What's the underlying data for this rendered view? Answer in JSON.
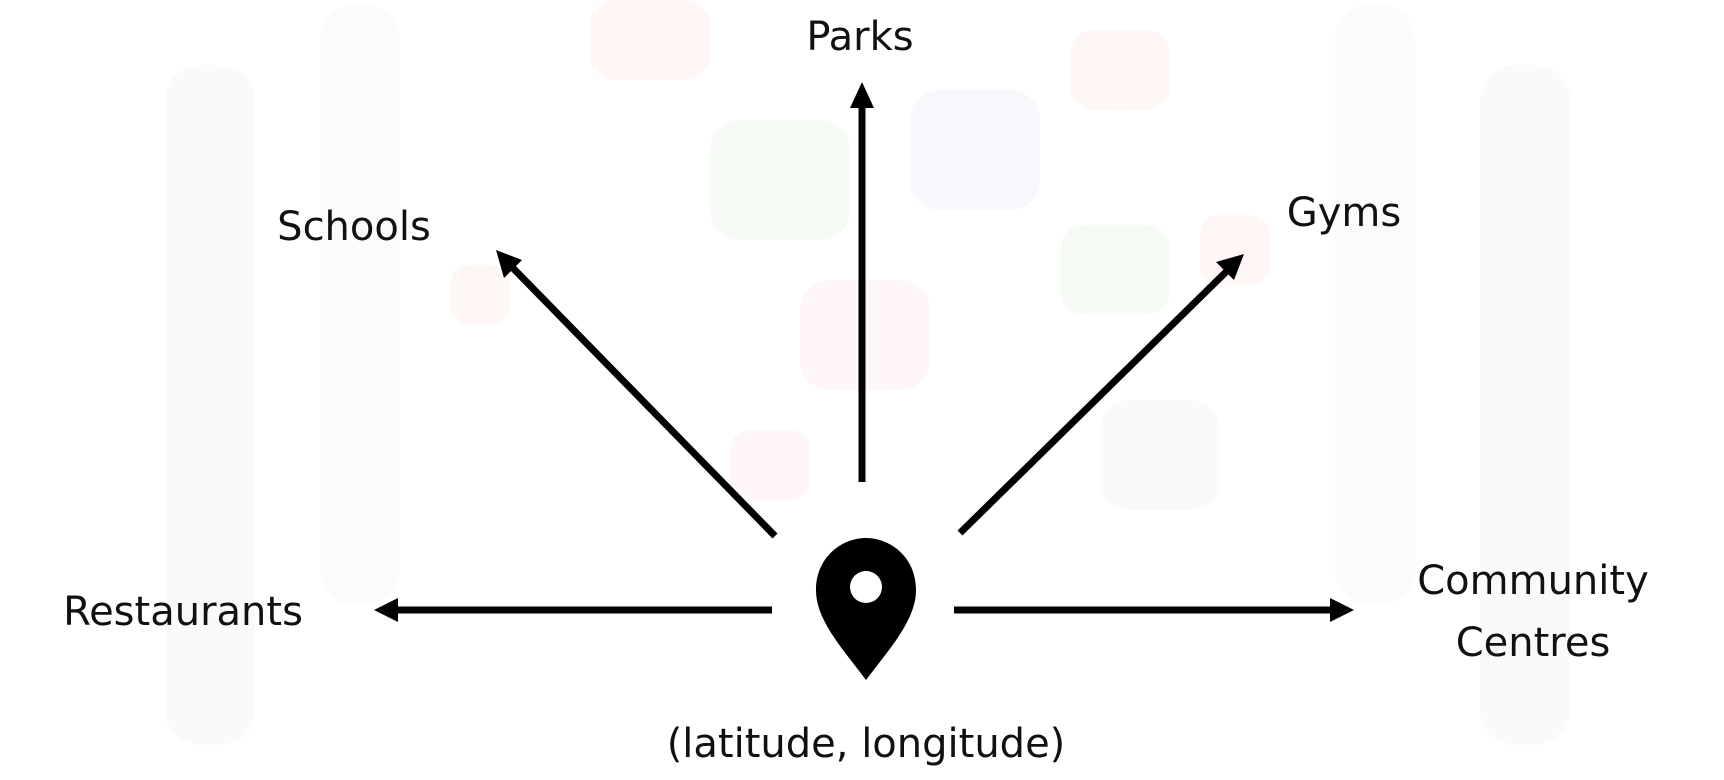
{
  "diagram": {
    "center_label": "(latitude, longitude)",
    "center_icon": "map-pin-icon",
    "categories": {
      "parks": "Parks",
      "schools": "Schools",
      "gyms": "Gyms",
      "restaurants": "Restaurants",
      "community_line1": "Community",
      "community_line2": "Centres"
    }
  },
  "colors": {
    "arrow": "#000000",
    "text": "#111111"
  }
}
